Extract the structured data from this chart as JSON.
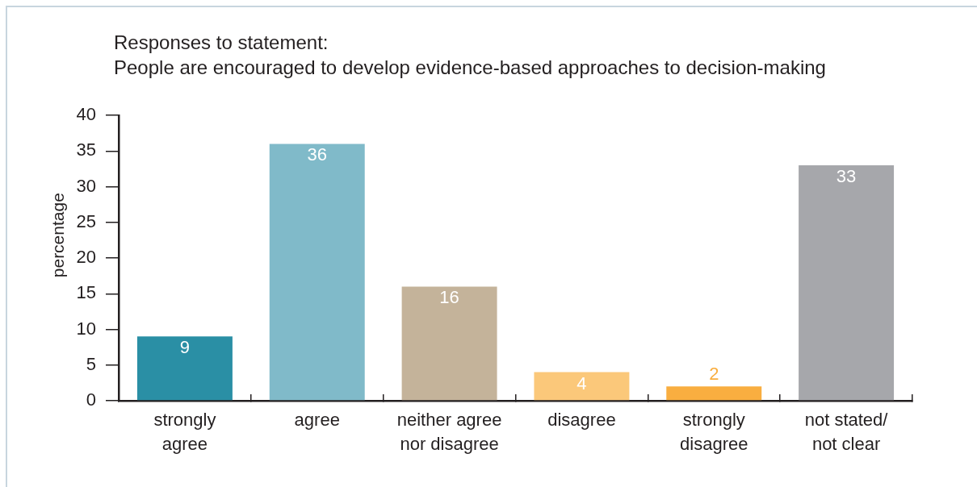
{
  "chart_data": {
    "type": "bar",
    "title": "Responses to statement:",
    "subtitle": "People are encouraged to develop evidence-based approaches to decision-making",
    "ylabel": "percentage",
    "categories": [
      "strongly\nagree",
      "agree",
      "neither agree\nnor disagree",
      "disagree",
      "strongly\ndisagree",
      "not stated/\nnot clear"
    ],
    "values": [
      9,
      36,
      16,
      4,
      2,
      33
    ],
    "colors": [
      "#2a8fa5",
      "#80bac9",
      "#c4b39a",
      "#fbc87a",
      "#f9ae40",
      "#a6a7ab"
    ],
    "ylim": [
      0,
      40
    ],
    "yticks": [
      0,
      5,
      10,
      15,
      20,
      25,
      30,
      35,
      40
    ],
    "data_labels": true
  }
}
